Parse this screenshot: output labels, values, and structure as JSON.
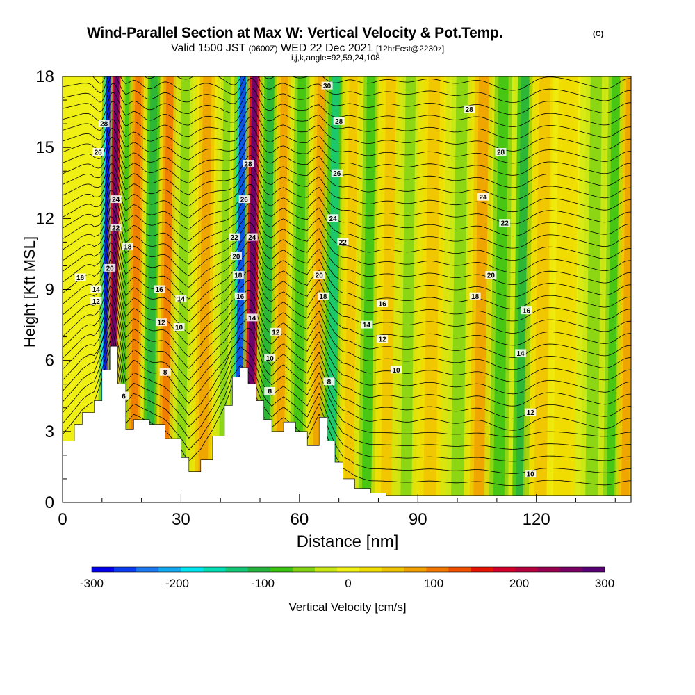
{
  "header": {
    "title": "Wind-Parallel Section at Max W: Vertical Velocity & Pot.Temp.",
    "title_mark": "(C)",
    "valid_prefix": "Valid 1500 JST",
    "valid_utc": "(0600Z)",
    "valid_date": "WED 22 Dec 2021",
    "valid_fcst": "[12hrFcst@2230z]",
    "indices": "i,j,k,angle=92,59,24,108"
  },
  "chart_data": {
    "type": "heatmap",
    "title": "Wind-Parallel Section at Max W: Vertical Velocity & Pot.Temp.",
    "xlabel": "Distance [nm]",
    "ylabel": "Height [Kft MSL]",
    "xlim": [
      0,
      144
    ],
    "ylim": [
      0,
      18
    ],
    "x_ticks": [
      "0",
      "30",
      "60",
      "90",
      "120"
    ],
    "y_ticks": [
      "0",
      "3",
      "6",
      "9",
      "12",
      "15",
      "18"
    ],
    "field": "Vertical Velocity [cm/s]",
    "colorbar": {
      "label": "Vertical Velocity [cm/s]",
      "ticks": [
        "-300",
        "-200",
        "-100",
        "0",
        "100",
        "200",
        "300"
      ],
      "range": [
        -300,
        300
      ],
      "colors": [
        "#0000ee",
        "#0a3cf0",
        "#1e78f0",
        "#14aaf0",
        "#00e6f0",
        "#00dcb4",
        "#14c878",
        "#28b43c",
        "#3cc314",
        "#82d214",
        "#c8e614",
        "#f0f014",
        "#f0dc00",
        "#f0c300",
        "#f0a000",
        "#f07800",
        "#f05000",
        "#e61400",
        "#d20028",
        "#b4003c",
        "#960050",
        "#780064",
        "#5a0078"
      ]
    },
    "terrain_kft": {
      "x": [
        0,
        3,
        5,
        8,
        10,
        12,
        14,
        16,
        18,
        22,
        26,
        30,
        32,
        35,
        38,
        41,
        43,
        45,
        47,
        49,
        51,
        53,
        56,
        59,
        62,
        65,
        67,
        69,
        71,
        74,
        78,
        82,
        86,
        90,
        96,
        110,
        125,
        144
      ],
      "y": [
        2.6,
        3.3,
        3.8,
        4.3,
        5.6,
        6.6,
        5.0,
        3.1,
        3.5,
        3.3,
        2.7,
        1.9,
        1.3,
        1.8,
        2.8,
        4.1,
        5.3,
        5.7,
        5.0,
        4.3,
        3.5,
        3.0,
        3.4,
        3.0,
        2.4,
        3.6,
        2.6,
        1.7,
        1.0,
        0.6,
        0.4,
        0.3,
        0.3,
        0.3,
        0.3,
        0.3,
        0.3,
        0.3
      ]
    },
    "vertical_velocity_bands": [
      {
        "x": 10.5,
        "w": -300,
        "width_nm": 1.6,
        "top_kft": 18
      },
      {
        "x": 12.5,
        "w": 300,
        "width_nm": 1.6,
        "top_kft": 18
      },
      {
        "x": 15.5,
        "w": -80,
        "width_nm": 2.0,
        "top_kft": 18
      },
      {
        "x": 18.0,
        "w": 120,
        "width_nm": 2.2,
        "top_kft": 18
      },
      {
        "x": 22.0,
        "w": -110,
        "width_nm": 2.5,
        "top_kft": 18
      },
      {
        "x": 26.0,
        "w": 120,
        "width_nm": 2.5,
        "top_kft": 18
      },
      {
        "x": 30.0,
        "w": -60,
        "width_nm": 3.0,
        "top_kft": 18
      },
      {
        "x": 35.5,
        "w": 90,
        "width_nm": 3.0,
        "top_kft": 18
      },
      {
        "x": 40.5,
        "w": -60,
        "width_nm": 2.5,
        "top_kft": 18
      },
      {
        "x": 44.5,
        "w": -260,
        "width_nm": 2.2,
        "top_kft": 18
      },
      {
        "x": 47.5,
        "w": 300,
        "width_nm": 2.0,
        "top_kft": 18
      },
      {
        "x": 51.5,
        "w": -120,
        "width_nm": 2.5,
        "top_kft": 18
      },
      {
        "x": 55.0,
        "w": 80,
        "width_nm": 2.5,
        "top_kft": 18
      },
      {
        "x": 59.5,
        "w": -70,
        "width_nm": 3.0,
        "top_kft": 18
      },
      {
        "x": 64.5,
        "w": 80,
        "width_nm": 3.0,
        "top_kft": 18
      },
      {
        "x": 68.0,
        "w": -130,
        "width_nm": 2.8,
        "top_kft": 18
      },
      {
        "x": 72.5,
        "w": 60,
        "width_nm": 3.0,
        "top_kft": 18
      },
      {
        "x": 77.0,
        "w": -70,
        "width_nm": 3.0,
        "top_kft": 18
      },
      {
        "x": 82.0,
        "w": 60,
        "width_nm": 3.5,
        "top_kft": 18
      },
      {
        "x": 87.0,
        "w": -50,
        "width_nm": 3.5,
        "top_kft": 18
      },
      {
        "x": 93.0,
        "w": 60,
        "width_nm": 4.0,
        "top_kft": 18
      },
      {
        "x": 100.0,
        "w": -60,
        "width_nm": 4.0,
        "top_kft": 18
      },
      {
        "x": 105.5,
        "w": 70,
        "width_nm": 3.5,
        "top_kft": 18
      },
      {
        "x": 110.5,
        "w": -90,
        "width_nm": 3.5,
        "top_kft": 18
      },
      {
        "x": 116.0,
        "w": -110,
        "width_nm": 3.0,
        "top_kft": 18
      },
      {
        "x": 121.0,
        "w": 60,
        "width_nm": 4.0,
        "top_kft": 18
      },
      {
        "x": 127.0,
        "w": 30,
        "width_nm": 4.0,
        "top_kft": 18
      },
      {
        "x": 134.0,
        "w": -50,
        "width_nm": 4.0,
        "top_kft": 18
      },
      {
        "x": 139.0,
        "w": -90,
        "width_nm": 3.0,
        "top_kft": 18
      },
      {
        "x": 142.5,
        "w": 80,
        "width_nm": 2.5,
        "top_kft": 18
      }
    ],
    "pot_temp_labels": [
      {
        "text": "30",
        "x": 67.0,
        "y": 17.6
      },
      {
        "text": "28",
        "x": 10.5,
        "y": 16.0
      },
      {
        "text": "28",
        "x": 70.0,
        "y": 16.1
      },
      {
        "text": "28",
        "x": 103.0,
        "y": 16.6
      },
      {
        "text": "26",
        "x": 9.0,
        "y": 14.8
      },
      {
        "text": "28",
        "x": 47.0,
        "y": 14.3
      },
      {
        "text": "26",
        "x": 69.5,
        "y": 13.9
      },
      {
        "text": "28",
        "x": 111.0,
        "y": 14.8
      },
      {
        "text": "24",
        "x": 13.5,
        "y": 12.8
      },
      {
        "text": "26",
        "x": 46.0,
        "y": 12.8
      },
      {
        "text": "24",
        "x": 68.5,
        "y": 12.0
      },
      {
        "text": "24",
        "x": 106.5,
        "y": 12.9
      },
      {
        "text": "22",
        "x": 13.5,
        "y": 11.6
      },
      {
        "text": "22",
        "x": 43.5,
        "y": 11.2
      },
      {
        "text": "24",
        "x": 48.0,
        "y": 11.2
      },
      {
        "text": "22",
        "x": 71.0,
        "y": 11.0
      },
      {
        "text": "22",
        "x": 112.0,
        "y": 11.8
      },
      {
        "text": "18",
        "x": 16.5,
        "y": 10.8
      },
      {
        "text": "20",
        "x": 12.0,
        "y": 9.9
      },
      {
        "text": "20",
        "x": 44.0,
        "y": 10.4
      },
      {
        "text": "18",
        "x": 44.5,
        "y": 9.6
      },
      {
        "text": "20",
        "x": 65.0,
        "y": 9.6
      },
      {
        "text": "20",
        "x": 108.5,
        "y": 9.6
      },
      {
        "text": "16",
        "x": 4.5,
        "y": 9.5
      },
      {
        "text": "14",
        "x": 8.5,
        "y": 9.0
      },
      {
        "text": "12",
        "x": 8.5,
        "y": 8.5
      },
      {
        "text": "16",
        "x": 24.5,
        "y": 9.0
      },
      {
        "text": "14",
        "x": 30.0,
        "y": 8.6
      },
      {
        "text": "16",
        "x": 45.0,
        "y": 8.7
      },
      {
        "text": "18",
        "x": 66.0,
        "y": 8.7
      },
      {
        "text": "18",
        "x": 104.5,
        "y": 8.7
      },
      {
        "text": "16",
        "x": 81.0,
        "y": 8.4
      },
      {
        "text": "16",
        "x": 117.5,
        "y": 8.1
      },
      {
        "text": "12",
        "x": 25.0,
        "y": 7.6
      },
      {
        "text": "10",
        "x": 29.5,
        "y": 7.4
      },
      {
        "text": "14",
        "x": 48.0,
        "y": 7.8
      },
      {
        "text": "14",
        "x": 77.0,
        "y": 7.5
      },
      {
        "text": "12",
        "x": 54.0,
        "y": 7.2
      },
      {
        "text": "12",
        "x": 81.0,
        "y": 6.9
      },
      {
        "text": "14",
        "x": 116.0,
        "y": 6.3
      },
      {
        "text": "10",
        "x": 52.5,
        "y": 6.1
      },
      {
        "text": "10",
        "x": 84.5,
        "y": 5.6
      },
      {
        "text": "8",
        "x": 26.0,
        "y": 5.5
      },
      {
        "text": "8",
        "x": 67.5,
        "y": 5.1
      },
      {
        "text": "8",
        "x": 52.5,
        "y": 4.7
      },
      {
        "text": "6",
        "x": 15.5,
        "y": 4.5
      },
      {
        "text": "12",
        "x": 118.5,
        "y": 3.8
      },
      {
        "text": "10",
        "x": 118.5,
        "y": 1.2
      }
    ]
  }
}
